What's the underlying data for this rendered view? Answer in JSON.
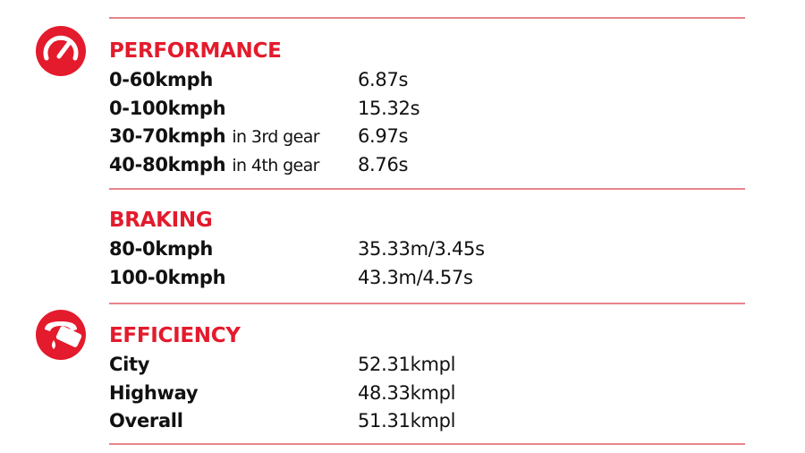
{
  "sections": [
    {
      "title": "PERFORMANCE",
      "rows": [
        {
          "label": "0-60kmph",
          "value": "6.87s"
        },
        {
          "label": "0-100kmph",
          "value": "15.32s"
        },
        {
          "label": "30-70kmph",
          "note": "in 3rd gear",
          "value": "6.97s"
        },
        {
          "label": "40-80kmph",
          "note": "in 4th gear",
          "value": "8.76s"
        }
      ]
    },
    {
      "title": "BRAKING",
      "rows": [
        {
          "label": "80-0kmph",
          "value": "35.33m/3.45s"
        },
        {
          "label": "100-0kmph",
          "value": "43.3m/4.57s"
        }
      ]
    },
    {
      "title": "EFFICIENCY",
      "rows": [
        {
          "label": "City",
          "value": "52.31kmpl"
        },
        {
          "label": "Highway",
          "value": "48.33kmpl"
        },
        {
          "label": "Overall",
          "value": "51.31kmpl"
        }
      ]
    }
  ]
}
